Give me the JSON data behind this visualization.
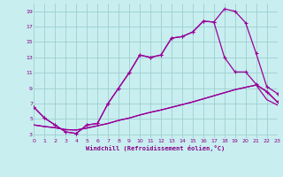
{
  "xlabel": "Windchill (Refroidissement éolien,°C)",
  "bg_color": "#c8eef0",
  "line_color": "#990099",
  "grid_color": "#9dcfcf",
  "xlim": [
    0,
    23
  ],
  "ylim": [
    2.5,
    20.0
  ],
  "xticks": [
    0,
    1,
    2,
    3,
    4,
    5,
    6,
    7,
    8,
    9,
    10,
    11,
    12,
    13,
    14,
    15,
    16,
    17,
    18,
    19,
    20,
    21,
    22,
    23
  ],
  "yticks": [
    3,
    5,
    7,
    9,
    11,
    13,
    15,
    17,
    19
  ],
  "curve1_x": [
    0,
    1,
    2,
    3,
    4,
    5,
    6,
    7,
    8,
    9,
    10,
    11,
    12,
    13,
    14,
    15,
    16,
    17,
    18,
    19,
    20,
    21,
    22,
    23
  ],
  "curve1_y": [
    6.5,
    5.1,
    4.2,
    3.3,
    3.1,
    4.2,
    4.4,
    7.0,
    9.0,
    11.0,
    13.3,
    13.0,
    13.3,
    15.5,
    15.7,
    16.3,
    17.7,
    17.6,
    19.3,
    19.0,
    17.5,
    13.5,
    9.2,
    8.3
  ],
  "curve2_x": [
    0,
    1,
    2,
    3,
    4,
    5,
    6,
    7,
    8,
    9,
    10,
    11,
    12,
    13,
    14,
    15,
    16,
    17,
    18,
    19,
    20,
    21,
    22,
    23
  ],
  "curve2_y": [
    6.5,
    5.1,
    4.2,
    3.3,
    3.1,
    4.2,
    4.4,
    7.0,
    9.0,
    11.0,
    13.3,
    13.0,
    13.3,
    15.5,
    15.7,
    16.3,
    17.7,
    17.6,
    13.0,
    11.1,
    11.1,
    9.5,
    8.5,
    7.2
  ],
  "curve3_x": [
    0,
    1,
    2,
    3,
    4,
    5,
    6,
    7,
    8,
    9,
    10,
    11,
    12,
    13,
    14,
    15,
    16,
    17,
    18,
    19,
    20,
    21,
    22,
    23
  ],
  "curve3_y": [
    4.2,
    4.0,
    3.85,
    3.6,
    3.55,
    3.8,
    4.1,
    4.4,
    4.8,
    5.1,
    5.5,
    5.85,
    6.15,
    6.5,
    6.85,
    7.2,
    7.6,
    8.0,
    8.4,
    8.8,
    9.1,
    9.4,
    8.6,
    7.2
  ],
  "curve4_x": [
    0,
    1,
    2,
    3,
    4,
    5,
    6,
    7,
    8,
    9,
    10,
    11,
    12,
    13,
    14,
    15,
    16,
    17,
    18,
    19,
    20,
    21,
    22,
    23
  ],
  "curve4_y": [
    4.2,
    4.0,
    3.85,
    3.6,
    3.55,
    3.8,
    4.1,
    4.4,
    4.8,
    5.1,
    5.5,
    5.85,
    6.15,
    6.5,
    6.85,
    7.2,
    7.6,
    8.0,
    8.4,
    8.8,
    9.1,
    9.4,
    7.5,
    6.8
  ],
  "xlabel_color": "#880088",
  "tick_label_color": "#880088"
}
